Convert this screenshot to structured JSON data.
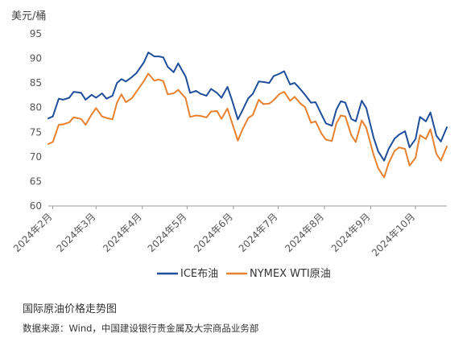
{
  "chart_data": {
    "type": "line",
    "ylabel": "美元/桶",
    "ylim": [
      60,
      95
    ],
    "yticks": [
      60,
      65,
      70,
      75,
      80,
      85,
      90,
      95
    ],
    "xlim": [
      "2024-01-29",
      "2024-10-22"
    ],
    "x_ticks": [
      {
        "date": "2024-02-01",
        "label": "2024年2月"
      },
      {
        "date": "2024-03-01",
        "label": "2024年3月"
      },
      {
        "date": "2024-04-01",
        "label": "2024年4月"
      },
      {
        "date": "2024-05-01",
        "label": "2024年5月"
      },
      {
        "date": "2024-06-01",
        "label": "2024年6月"
      },
      {
        "date": "2024-07-01",
        "label": "2024年7月"
      },
      {
        "date": "2024-08-01",
        "label": "2024年8月"
      },
      {
        "date": "2024-09-01",
        "label": "2024年9月"
      },
      {
        "date": "2024-10-01",
        "label": "2024年10月"
      }
    ],
    "grid": false,
    "legend_position": "bottom",
    "series": [
      {
        "name": "ICE布油",
        "color": "#1f4e9c",
        "points": [
          [
            "2024-01-29",
            77.8
          ],
          [
            "2024-02-01",
            78.2
          ],
          [
            "2024-02-05",
            81.8
          ],
          [
            "2024-02-08",
            81.6
          ],
          [
            "2024-02-12",
            82.0
          ],
          [
            "2024-02-15",
            83.2
          ],
          [
            "2024-02-20",
            83.0
          ],
          [
            "2024-02-23",
            81.6
          ],
          [
            "2024-02-27",
            82.6
          ],
          [
            "2024-03-01",
            82.0
          ],
          [
            "2024-03-05",
            82.9
          ],
          [
            "2024-03-08",
            81.8
          ],
          [
            "2024-03-12",
            82.4
          ],
          [
            "2024-03-15",
            85.0
          ],
          [
            "2024-03-18",
            85.8
          ],
          [
            "2024-03-21",
            85.3
          ],
          [
            "2024-03-25",
            86.2
          ],
          [
            "2024-03-28",
            87.0
          ],
          [
            "2024-04-02",
            89.2
          ],
          [
            "2024-04-05",
            91.2
          ],
          [
            "2024-04-09",
            90.4
          ],
          [
            "2024-04-12",
            90.4
          ],
          [
            "2024-04-15",
            90.2
          ],
          [
            "2024-04-18",
            88.3
          ],
          [
            "2024-04-22",
            87.2
          ],
          [
            "2024-04-25",
            89.0
          ],
          [
            "2024-04-30",
            86.3
          ],
          [
            "2024-05-03",
            83.0
          ],
          [
            "2024-05-07",
            83.4
          ],
          [
            "2024-05-10",
            82.8
          ],
          [
            "2024-05-14",
            82.4
          ],
          [
            "2024-05-17",
            83.8
          ],
          [
            "2024-05-21",
            83.0
          ],
          [
            "2024-05-24",
            82.0
          ],
          [
            "2024-05-28",
            84.2
          ],
          [
            "2024-05-31",
            81.6
          ],
          [
            "2024-06-04",
            77.6
          ],
          [
            "2024-06-07",
            79.4
          ],
          [
            "2024-06-11",
            81.9
          ],
          [
            "2024-06-14",
            82.8
          ],
          [
            "2024-06-18",
            85.3
          ],
          [
            "2024-06-21",
            85.2
          ],
          [
            "2024-06-25",
            85.0
          ],
          [
            "2024-06-28",
            86.4
          ],
          [
            "2024-07-02",
            86.9
          ],
          [
            "2024-07-05",
            87.4
          ],
          [
            "2024-07-09",
            84.7
          ],
          [
            "2024-07-12",
            85.0
          ],
          [
            "2024-07-16",
            83.7
          ],
          [
            "2024-07-19",
            82.6
          ],
          [
            "2024-07-23",
            81.0
          ],
          [
            "2024-07-26",
            81.1
          ],
          [
            "2024-07-30",
            78.6
          ],
          [
            "2024-08-02",
            76.8
          ],
          [
            "2024-08-06",
            76.3
          ],
          [
            "2024-08-09",
            79.6
          ],
          [
            "2024-08-12",
            81.3
          ],
          [
            "2024-08-15",
            81.0
          ],
          [
            "2024-08-19",
            77.7
          ],
          [
            "2024-08-22",
            77.2
          ],
          [
            "2024-08-26",
            81.4
          ],
          [
            "2024-08-29",
            79.9
          ],
          [
            "2024-09-03",
            73.8
          ],
          [
            "2024-09-06",
            71.1
          ],
          [
            "2024-09-10",
            69.2
          ],
          [
            "2024-09-13",
            71.6
          ],
          [
            "2024-09-17",
            73.7
          ],
          [
            "2024-09-20",
            74.5
          ],
          [
            "2024-09-24",
            75.2
          ],
          [
            "2024-09-27",
            71.9
          ],
          [
            "2024-10-01",
            73.6
          ],
          [
            "2024-10-04",
            78.1
          ],
          [
            "2024-10-08",
            77.2
          ],
          [
            "2024-10-11",
            79.0
          ],
          [
            "2024-10-15",
            74.3
          ],
          [
            "2024-10-18",
            73.1
          ],
          [
            "2024-10-22",
            76.0
          ]
        ]
      },
      {
        "name": "NYMEX WTI原油",
        "color": "#e8812f",
        "points": [
          [
            "2024-01-29",
            72.6
          ],
          [
            "2024-02-01",
            73.0
          ],
          [
            "2024-02-05",
            76.5
          ],
          [
            "2024-02-08",
            76.6
          ],
          [
            "2024-02-12",
            77.0
          ],
          [
            "2024-02-15",
            78.0
          ],
          [
            "2024-02-20",
            77.7
          ],
          [
            "2024-02-23",
            76.5
          ],
          [
            "2024-02-27",
            78.6
          ],
          [
            "2024-03-01",
            79.9
          ],
          [
            "2024-03-05",
            78.2
          ],
          [
            "2024-03-08",
            77.9
          ],
          [
            "2024-03-12",
            77.6
          ],
          [
            "2024-03-15",
            81.0
          ],
          [
            "2024-03-18",
            82.7
          ],
          [
            "2024-03-21",
            81.1
          ],
          [
            "2024-03-25",
            81.9
          ],
          [
            "2024-03-28",
            83.2
          ],
          [
            "2024-04-02",
            85.4
          ],
          [
            "2024-04-05",
            86.9
          ],
          [
            "2024-04-09",
            85.5
          ],
          [
            "2024-04-12",
            85.7
          ],
          [
            "2024-04-15",
            85.4
          ],
          [
            "2024-04-18",
            82.7
          ],
          [
            "2024-04-22",
            82.9
          ],
          [
            "2024-04-25",
            83.6
          ],
          [
            "2024-04-30",
            81.9
          ],
          [
            "2024-05-03",
            78.1
          ],
          [
            "2024-05-07",
            78.4
          ],
          [
            "2024-05-10",
            78.3
          ],
          [
            "2024-05-14",
            78.0
          ],
          [
            "2024-05-17",
            79.2
          ],
          [
            "2024-05-21",
            79.3
          ],
          [
            "2024-05-24",
            77.7
          ],
          [
            "2024-05-28",
            79.8
          ],
          [
            "2024-05-31",
            77.0
          ],
          [
            "2024-06-04",
            73.3
          ],
          [
            "2024-06-07",
            75.5
          ],
          [
            "2024-06-11",
            77.9
          ],
          [
            "2024-06-14",
            78.5
          ],
          [
            "2024-06-18",
            81.6
          ],
          [
            "2024-06-21",
            80.7
          ],
          [
            "2024-06-25",
            80.8
          ],
          [
            "2024-06-28",
            81.5
          ],
          [
            "2024-07-02",
            82.8
          ],
          [
            "2024-07-05",
            83.2
          ],
          [
            "2024-07-09",
            81.4
          ],
          [
            "2024-07-12",
            82.2
          ],
          [
            "2024-07-16",
            80.8
          ],
          [
            "2024-07-19",
            80.1
          ],
          [
            "2024-07-23",
            76.9
          ],
          [
            "2024-07-26",
            77.2
          ],
          [
            "2024-07-30",
            74.7
          ],
          [
            "2024-08-02",
            73.5
          ],
          [
            "2024-08-06",
            73.2
          ],
          [
            "2024-08-09",
            76.8
          ],
          [
            "2024-08-12",
            78.4
          ],
          [
            "2024-08-15",
            78.2
          ],
          [
            "2024-08-19",
            74.4
          ],
          [
            "2024-08-22",
            73.0
          ],
          [
            "2024-08-26",
            77.4
          ],
          [
            "2024-08-29",
            75.9
          ],
          [
            "2024-09-03",
            70.3
          ],
          [
            "2024-09-06",
            67.7
          ],
          [
            "2024-09-10",
            65.8
          ],
          [
            "2024-09-13",
            68.7
          ],
          [
            "2024-09-17",
            71.2
          ],
          [
            "2024-09-20",
            71.9
          ],
          [
            "2024-09-24",
            71.6
          ],
          [
            "2024-09-27",
            68.2
          ],
          [
            "2024-10-01",
            69.8
          ],
          [
            "2024-10-04",
            74.4
          ],
          [
            "2024-10-08",
            73.6
          ],
          [
            "2024-10-11",
            75.6
          ],
          [
            "2024-10-15",
            70.6
          ],
          [
            "2024-10-18",
            69.2
          ],
          [
            "2024-10-22",
            72.1
          ]
        ]
      }
    ]
  },
  "captions": {
    "title": "国际原油价格走势图",
    "source": "数据来源：Wind，中国建设银行贵金属及大宗商品业务部"
  }
}
